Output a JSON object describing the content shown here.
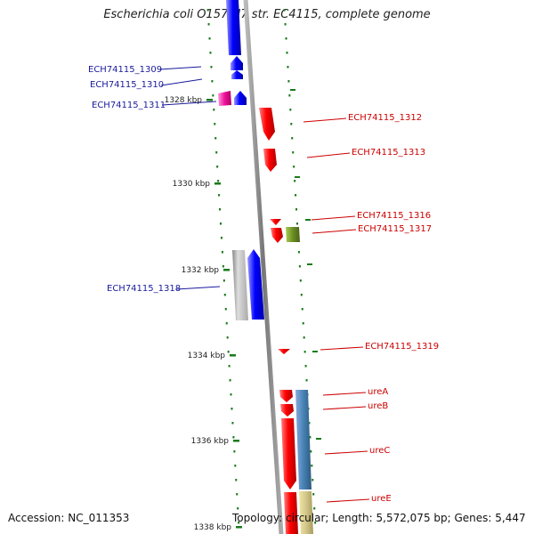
{
  "title": "Escherichia coli O157:H7 str. EC4115, complete genome",
  "footer": {
    "accession": "Accession: NC_011353",
    "topology": "Topology: circular; Length: 5,572,075 bp; Genes: 5,447"
  },
  "colors": {
    "plus_strand_label": "#1a1a9c",
    "minus_strand_label": "#cc0000",
    "backbone": "#888888",
    "tick": "#1a7a1a"
  },
  "ticks": [
    {
      "kbp": 1328,
      "label": "1328 kbp"
    },
    {
      "kbp": 1330,
      "label": "1330 kbp"
    },
    {
      "kbp": 1332,
      "label": "1332 kbp"
    },
    {
      "kbp": 1334,
      "label": "1334 kbp"
    },
    {
      "kbp": 1336,
      "label": "1336 kbp"
    },
    {
      "kbp": 1338,
      "label": "1338 kbp"
    }
  ],
  "genes": [
    {
      "name": "ECH74115_1309",
      "strand": "+"
    },
    {
      "name": "ECH74115_1310",
      "strand": "+"
    },
    {
      "name": "ECH74115_1311",
      "strand": "+"
    },
    {
      "name": "ECH74115_1312",
      "strand": "-"
    },
    {
      "name": "ECH74115_1313",
      "strand": "-"
    },
    {
      "name": "ECH74115_1316",
      "strand": "-"
    },
    {
      "name": "ECH74115_1317",
      "strand": "-"
    },
    {
      "name": "ECH74115_1318",
      "strand": "+"
    },
    {
      "name": "ECH74115_1319",
      "strand": "-"
    },
    {
      "name": "ureA",
      "strand": "-"
    },
    {
      "name": "ureB",
      "strand": "-"
    },
    {
      "name": "ureC",
      "strand": "-"
    },
    {
      "name": "ureE",
      "strand": "-"
    }
  ]
}
